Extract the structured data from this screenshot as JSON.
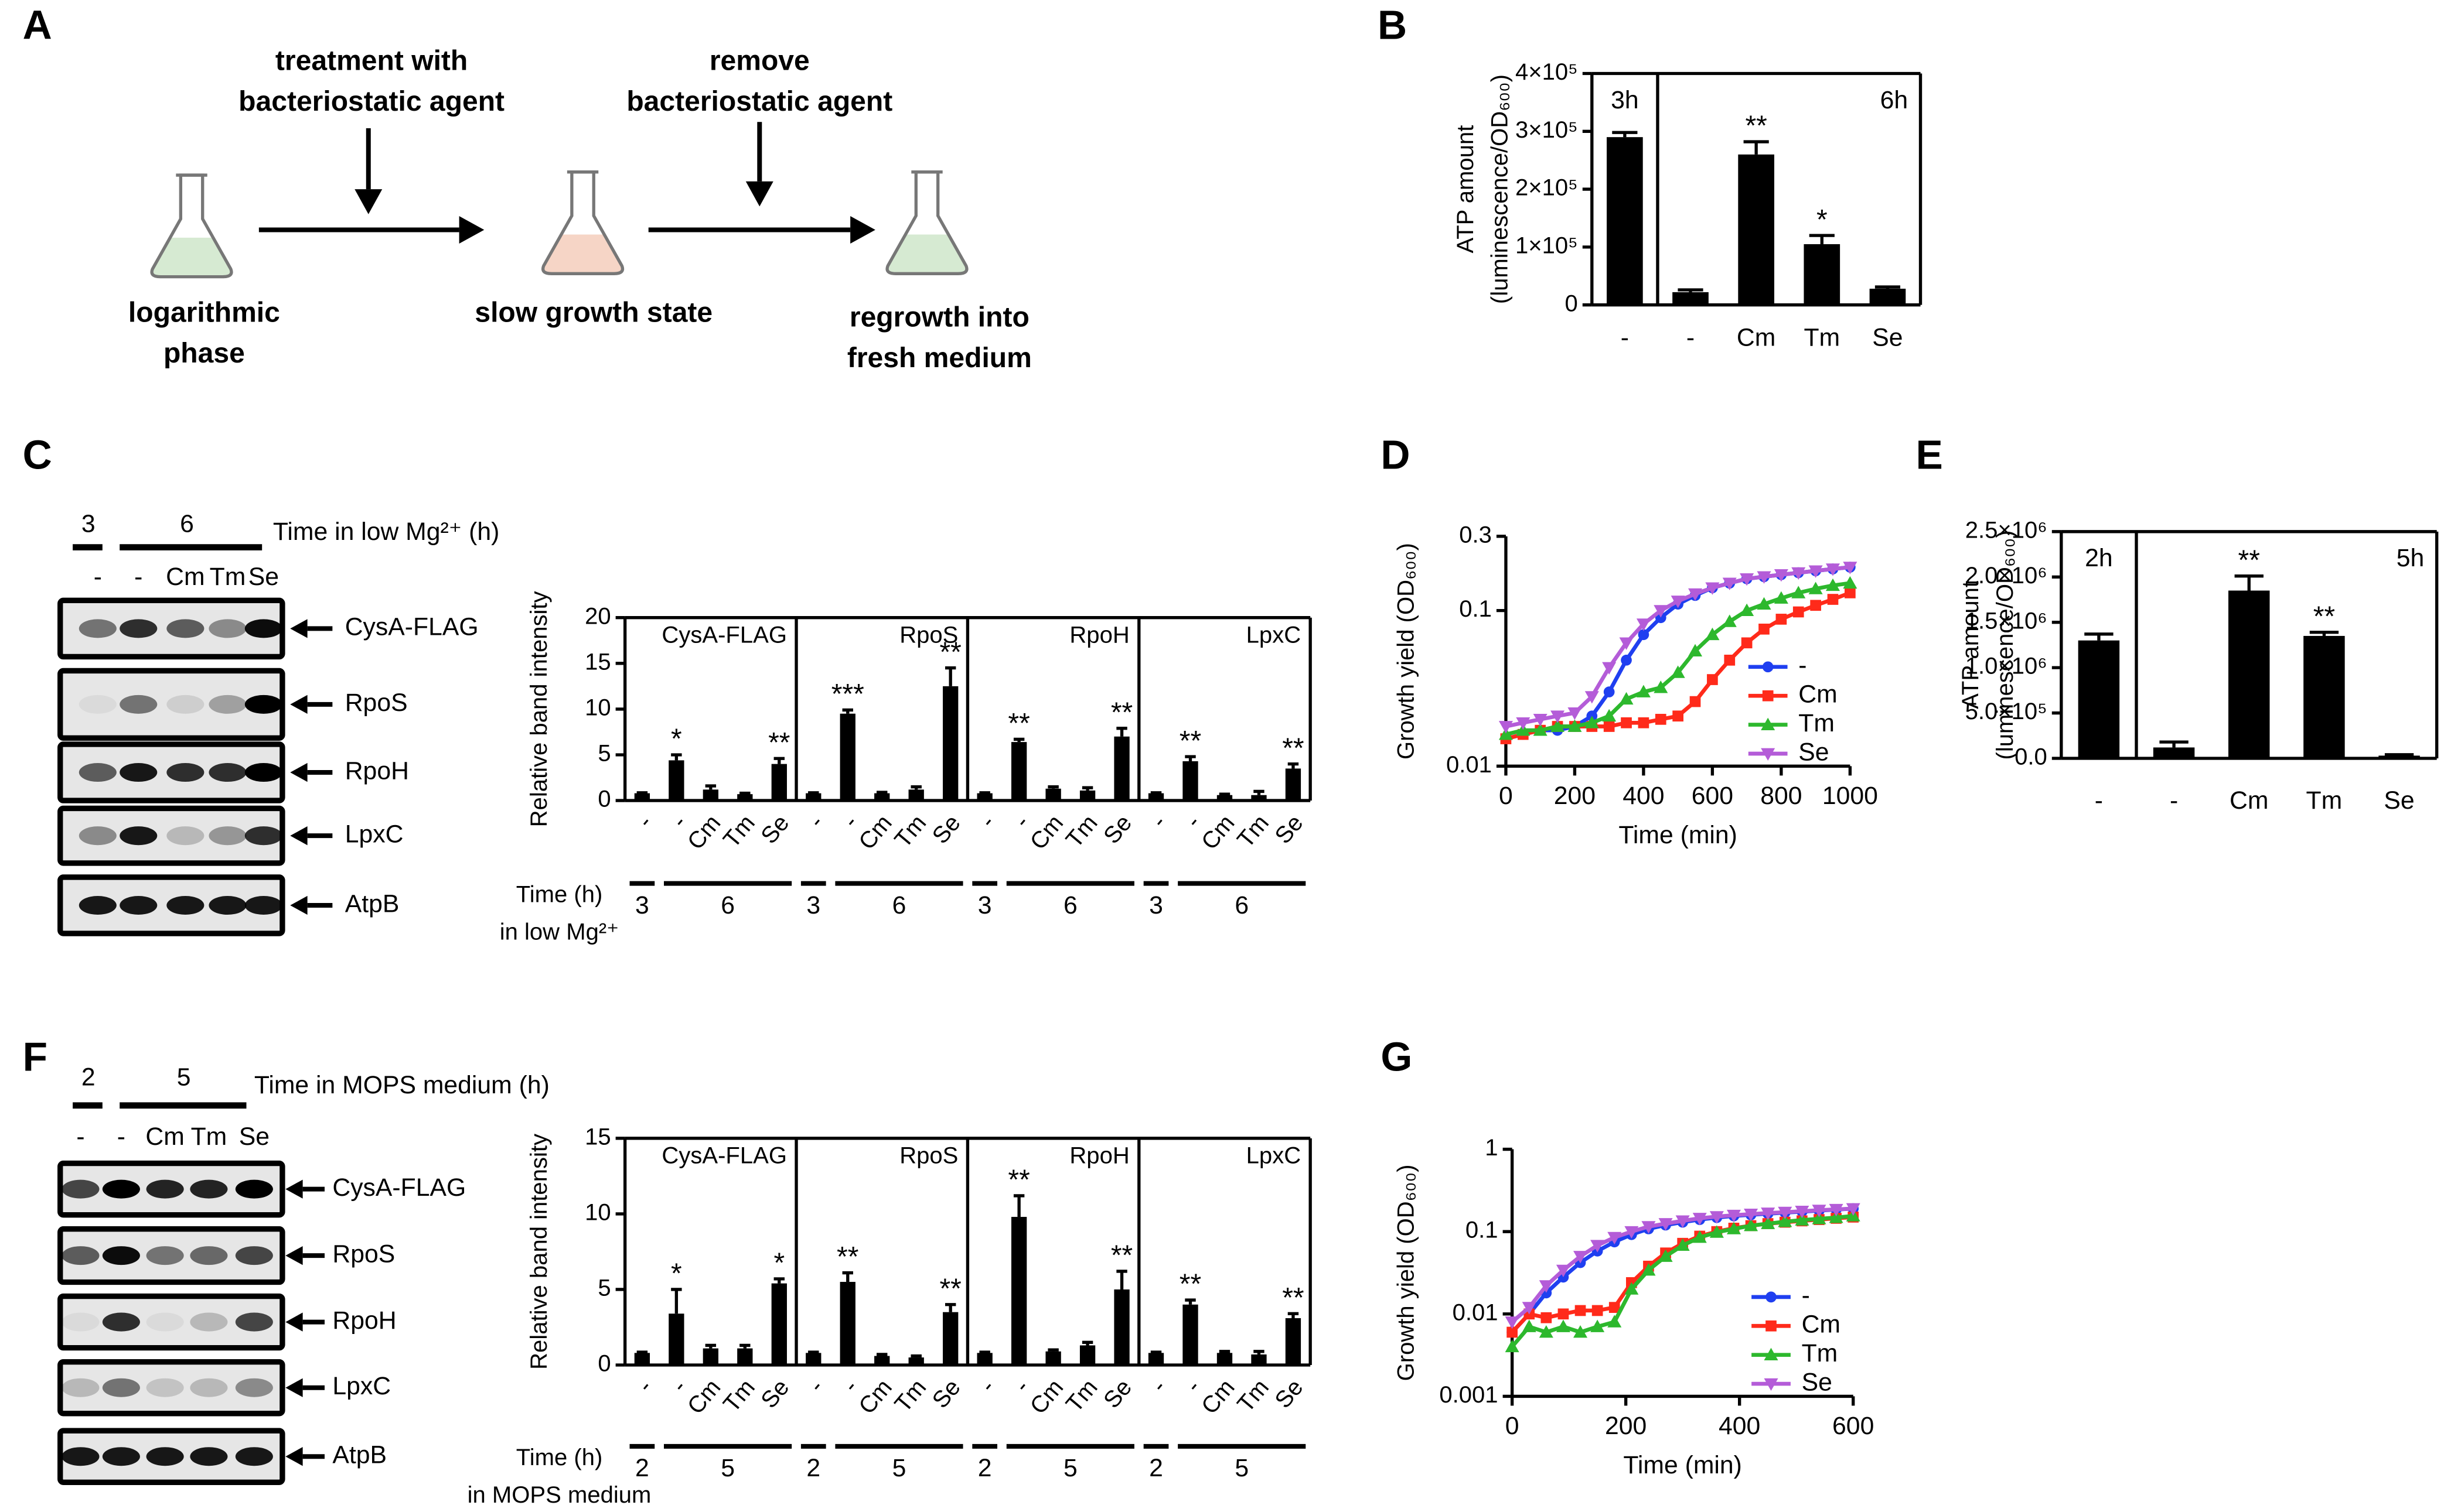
{
  "schematic": {
    "panel": "A",
    "steps": [
      [
        "logarithmic",
        "phase"
      ],
      [
        "slow growth state"
      ],
      [
        "regrowth into",
        "fresh medium"
      ]
    ],
    "actions": [
      [
        "treatment with",
        "bacteriostatic  agent"
      ],
      [
        "remove",
        "bacteriostatic  agent"
      ]
    ]
  },
  "blots": [
    {
      "panel": "C",
      "time_header": [
        "3",
        "6"
      ],
      "time_label": "Time in low Mg²⁺ (h)",
      "lanes": [
        "-",
        "-",
        "Cm",
        "Tm",
        "Se"
      ],
      "rows": [
        "CysA-FLAG",
        "RpoS",
        "RpoH",
        "LpxC",
        "AtpB"
      ]
    },
    {
      "panel": "F",
      "time_header": [
        "2",
        "5"
      ],
      "time_label": "Time in MOPS medium (h)",
      "lanes": [
        "-",
        "-",
        "Cm",
        "Tm",
        "Se"
      ],
      "rows": [
        "CysA-FLAG",
        "RpoS",
        "RpoH",
        "LpxC",
        "AtpB"
      ]
    }
  ],
  "chart_data": [
    {
      "type": "bar",
      "panel": "B",
      "ylabel": [
        "ATP amount",
        "(luminescence/OD₆₀₀)"
      ],
      "categories": [
        "-",
        "-",
        "Cm",
        "Tm",
        "Se"
      ],
      "period_labels": [
        "3h",
        "6h"
      ],
      "values": [
        290000,
        22000,
        260000,
        105000,
        28000
      ],
      "errors": [
        8000,
        4000,
        22000,
        15000,
        3000
      ],
      "significance": [
        null,
        null,
        "**",
        "*",
        null
      ],
      "color": "#000000",
      "ylim": [
        0,
        400000
      ],
      "yticks": [
        0,
        {
          "value": 100000,
          "label": "1×10⁵"
        },
        {
          "value": 200000,
          "label": "2×10⁵"
        },
        {
          "value": 300000,
          "label": "3×10⁵"
        },
        {
          "value": 400000,
          "label": "4×10⁵"
        }
      ]
    },
    {
      "type": "bar",
      "panel": "C",
      "ylabel": [
        "Relative band intensity"
      ],
      "categories": [
        "-",
        "-",
        "Cm",
        "Tm",
        "Se"
      ],
      "group_title": [
        "Time (h)",
        "in low Mg²⁺"
      ],
      "groups": [
        "3",
        "6"
      ],
      "color": "#000000",
      "ylim": [
        0,
        20
      ],
      "yticks": [
        0,
        5,
        10,
        15,
        20
      ],
      "facets": [
        {
          "title": "CysA-FLAG",
          "values": [
            0.8,
            4.4,
            1.2,
            0.7,
            4.0
          ],
          "errors": [
            0.05,
            0.6,
            0.4,
            0.1,
            0.6
          ],
          "significance": [
            null,
            "*",
            null,
            null,
            "**"
          ]
        },
        {
          "title": "RpoS",
          "values": [
            0.8,
            9.5,
            0.8,
            1.2,
            12.5
          ],
          "errors": [
            0.05,
            0.4,
            0.1,
            0.3,
            2.0
          ],
          "significance": [
            null,
            "***",
            null,
            null,
            "**"
          ]
        },
        {
          "title": "RpoH",
          "values": [
            0.8,
            6.4,
            1.3,
            1.1,
            7.0
          ],
          "errors": [
            0.05,
            0.3,
            0.2,
            0.3,
            0.9
          ],
          "significance": [
            null,
            "**",
            null,
            null,
            "**"
          ]
        },
        {
          "title": "LpxC",
          "values": [
            0.8,
            4.3,
            0.6,
            0.6,
            3.5
          ],
          "errors": [
            0.05,
            0.5,
            0.1,
            0.4,
            0.5
          ],
          "significance": [
            null,
            "**",
            null,
            null,
            "**"
          ]
        }
      ]
    },
    {
      "type": "line",
      "panel": "D",
      "ylabel": "Growth yield (OD₆₀₀)",
      "xlabel": "Time (min)",
      "yscale": "log",
      "legend": "lower right",
      "x": [
        0,
        50,
        100,
        150,
        200,
        250,
        300,
        350,
        400,
        450,
        500,
        550,
        600,
        650,
        700,
        750,
        800,
        850,
        900,
        950,
        1000
      ],
      "xlim": [
        0,
        1000
      ],
      "xticks": [
        0,
        200,
        400,
        600,
        800,
        1000
      ],
      "ylim": [
        0.01,
        0.3
      ],
      "yticks": [
        0.01,
        0.1,
        0.3
      ],
      "series": [
        {
          "name": "-",
          "color": "#1f3ff0",
          "values": [
            0.015,
            0.016,
            0.017,
            0.017,
            0.018,
            0.021,
            0.03,
            0.048,
            0.07,
            0.09,
            0.11,
            0.125,
            0.14,
            0.15,
            0.16,
            0.165,
            0.17,
            0.175,
            0.18,
            0.185,
            0.19
          ]
        },
        {
          "name": "Cm",
          "color": "#ff2a1a",
          "values": [
            0.015,
            0.016,
            0.017,
            0.018,
            0.018,
            0.018,
            0.018,
            0.019,
            0.019,
            0.02,
            0.021,
            0.026,
            0.036,
            0.048,
            0.062,
            0.076,
            0.088,
            0.098,
            0.108,
            0.118,
            0.13
          ]
        },
        {
          "name": "Tm",
          "color": "#2db82d",
          "values": [
            0.016,
            0.017,
            0.017,
            0.018,
            0.018,
            0.019,
            0.021,
            0.027,
            0.03,
            0.032,
            0.04,
            0.055,
            0.07,
            0.085,
            0.1,
            0.11,
            0.12,
            0.13,
            0.138,
            0.145,
            0.15
          ]
        },
        {
          "name": "Se",
          "color": "#b45cd8",
          "values": [
            0.018,
            0.019,
            0.02,
            0.021,
            0.022,
            0.028,
            0.043,
            0.062,
            0.082,
            0.1,
            0.115,
            0.128,
            0.14,
            0.15,
            0.16,
            0.165,
            0.17,
            0.175,
            0.18,
            0.185,
            0.19
          ]
        }
      ]
    },
    {
      "type": "bar",
      "panel": "E",
      "ylabel": [
        "ATP amount",
        "(luminescence/OD₆₀₀)"
      ],
      "categories": [
        "-",
        "-",
        "Cm",
        "Tm",
        "Se"
      ],
      "period_labels": [
        "2h",
        "5h"
      ],
      "values": [
        1300000,
        120000,
        1850000,
        1350000,
        30000
      ],
      "errors": [
        70000,
        60000,
        160000,
        40000,
        10000
      ],
      "significance": [
        null,
        null,
        "**",
        "**",
        null
      ],
      "color": "#000000",
      "ylim": [
        0,
        2500000
      ],
      "yticks": [
        {
          "value": 0,
          "label": "0.0"
        },
        {
          "value": 500000,
          "label": "5.0×10⁵"
        },
        {
          "value": 1000000,
          "label": "1.0×10⁶"
        },
        {
          "value": 1500000,
          "label": "1.5×10⁶"
        },
        {
          "value": 2000000,
          "label": "2.0×10⁶"
        },
        {
          "value": 2500000,
          "label": "2.5×10⁶"
        }
      ]
    },
    {
      "type": "bar",
      "panel": "F",
      "ylabel": [
        "Relative band intensity"
      ],
      "categories": [
        "-",
        "-",
        "Cm",
        "Tm",
        "Se"
      ],
      "group_title": [
        "Time (h)",
        "in MOPS medium"
      ],
      "groups": [
        "2",
        "5"
      ],
      "color": "#000000",
      "ylim": [
        0,
        15
      ],
      "yticks": [
        0,
        5,
        10,
        15
      ],
      "facets": [
        {
          "title": "CysA-FLAG",
          "values": [
            0.8,
            3.4,
            1.1,
            1.1,
            5.4
          ],
          "errors": [
            0.05,
            1.6,
            0.2,
            0.2,
            0.3
          ],
          "significance": [
            null,
            "*",
            null,
            null,
            "*"
          ]
        },
        {
          "title": "RpoS",
          "values": [
            0.8,
            5.5,
            0.6,
            0.5,
            3.5
          ],
          "errors": [
            0.05,
            0.6,
            0.1,
            0.1,
            0.5
          ],
          "significance": [
            null,
            "**",
            null,
            null,
            "**"
          ]
        },
        {
          "title": "RpoH",
          "values": [
            0.8,
            9.8,
            0.9,
            1.3,
            5.0
          ],
          "errors": [
            0.05,
            1.4,
            0.1,
            0.2,
            1.2
          ],
          "significance": [
            null,
            "**",
            null,
            null,
            "**"
          ]
        },
        {
          "title": "LpxC",
          "values": [
            0.8,
            4.0,
            0.8,
            0.7,
            3.1
          ],
          "errors": [
            0.05,
            0.3,
            0.1,
            0.2,
            0.3
          ],
          "significance": [
            null,
            "**",
            null,
            null,
            "**"
          ]
        }
      ]
    },
    {
      "type": "line",
      "panel": "G",
      "ylabel": "Growth yield (OD₆₀₀)",
      "xlabel": "Time (min)",
      "yscale": "log",
      "legend": "lower right",
      "x": [
        0,
        30,
        60,
        90,
        120,
        150,
        180,
        210,
        240,
        270,
        300,
        330,
        360,
        390,
        420,
        450,
        480,
        510,
        540,
        570,
        600
      ],
      "xlim": [
        0,
        600
      ],
      "xticks": [
        0,
        200,
        400,
        600
      ],
      "ylim": [
        0.001,
        1
      ],
      "yticks": [
        0.001,
        0.01,
        0.1,
        1
      ],
      "series": [
        {
          "name": "-",
          "color": "#1f3ff0",
          "values": [
            0.006,
            0.01,
            0.018,
            0.028,
            0.042,
            0.058,
            0.075,
            0.092,
            0.108,
            0.12,
            0.13,
            0.14,
            0.148,
            0.155,
            0.16,
            0.165,
            0.17,
            0.175,
            0.18,
            0.185,
            0.19
          ]
        },
        {
          "name": "Cm",
          "color": "#ff2a1a",
          "values": [
            0.006,
            0.01,
            0.009,
            0.01,
            0.011,
            0.011,
            0.012,
            0.024,
            0.038,
            0.055,
            0.072,
            0.088,
            0.1,
            0.11,
            0.118,
            0.125,
            0.13,
            0.135,
            0.14,
            0.145,
            0.15
          ]
        },
        {
          "name": "Tm",
          "color": "#2db82d",
          "values": [
            0.004,
            0.007,
            0.006,
            0.007,
            0.006,
            0.007,
            0.008,
            0.02,
            0.034,
            0.05,
            0.068,
            0.085,
            0.098,
            0.108,
            0.118,
            0.125,
            0.132,
            0.138,
            0.143,
            0.148,
            0.155
          ]
        },
        {
          "name": "Se",
          "color": "#b45cd8",
          "values": [
            0.008,
            0.012,
            0.022,
            0.034,
            0.05,
            0.068,
            0.085,
            0.1,
            0.115,
            0.125,
            0.135,
            0.145,
            0.152,
            0.158,
            0.163,
            0.168,
            0.172,
            0.177,
            0.182,
            0.186,
            0.19
          ]
        }
      ]
    }
  ]
}
